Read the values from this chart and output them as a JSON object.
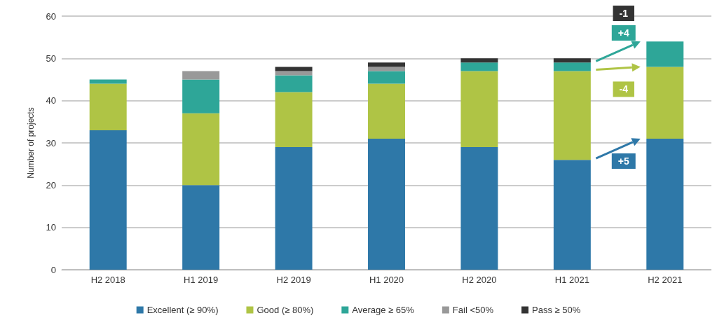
{
  "chart_data": {
    "type": "bar",
    "stacked": true,
    "ylabel": "Number of projects",
    "categories": [
      "H2 2018",
      "H1 2019",
      "H2 2019",
      "H1 2020",
      "H2 2020",
      "H1 2021",
      "H2 2021"
    ],
    "series": [
      {
        "name": "Excellent (≥ 90%)",
        "color": "#2e78a8",
        "values": [
          33,
          20,
          29,
          31,
          29,
          26,
          31
        ]
      },
      {
        "name": "Good (≥ 80%)",
        "color": "#afc445",
        "values": [
          11,
          17,
          13,
          13,
          18,
          21,
          17
        ]
      },
      {
        "name": "Average ≥ 65%",
        "color": "#2ea698",
        "values": [
          1,
          8,
          4,
          3,
          2,
          2,
          6
        ]
      },
      {
        "name": "Fail <50%",
        "color": "#999999",
        "values": [
          0,
          2,
          1,
          1,
          0,
          0,
          0
        ]
      },
      {
        "name": "Pass ≥ 50%",
        "color": "#333333",
        "values": [
          0,
          0,
          1,
          1,
          1,
          1,
          0
        ]
      }
    ],
    "ylim": [
      0,
      60
    ],
    "yticks": [
      0,
      10,
      20,
      30,
      40,
      50,
      60
    ],
    "grid": "y",
    "legend": "bottom",
    "annotations": [
      "-1",
      "+4",
      "-4",
      "+5"
    ]
  }
}
